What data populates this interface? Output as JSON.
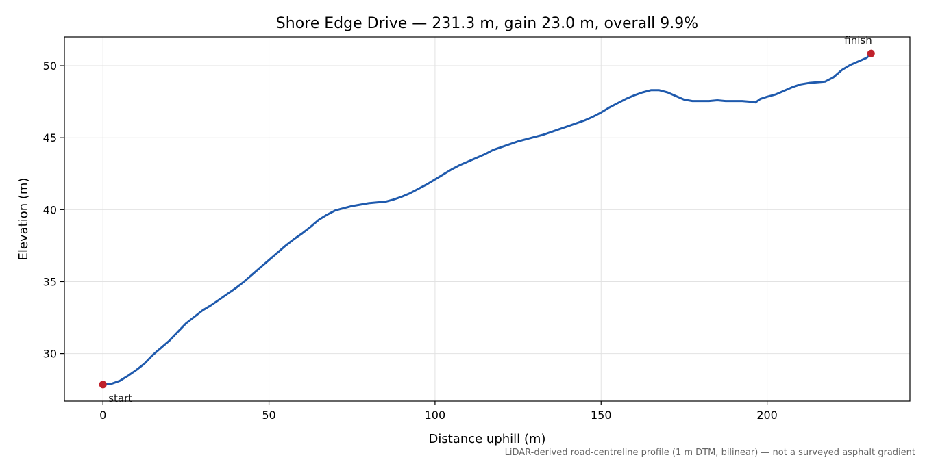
{
  "chart_data": {
    "type": "line",
    "title": "Shore Edge Drive — 231.3 m, gain 23.0 m, overall 9.9%",
    "xlabel": "Distance uphill (m)",
    "ylabel": "Elevation (m)",
    "xlim": [
      -11.6,
      243.0
    ],
    "ylim": [
      26.7,
      52.0
    ],
    "xticks": [
      0,
      50,
      100,
      150,
      200
    ],
    "yticks": [
      30,
      35,
      40,
      45,
      50
    ],
    "grid": true,
    "line_color": "#1f5aad",
    "marker_color": "#c0212b",
    "series": [
      {
        "x": [
          0,
          2.5,
          5,
          7.5,
          10,
          12.5,
          15,
          17.5,
          20,
          22.5,
          25,
          27.5,
          30,
          32.5,
          35,
          37.5,
          40,
          42.5,
          45,
          47.5,
          50,
          52.5,
          55,
          57.5,
          60,
          62.5,
          65,
          67.5,
          70,
          72.5,
          75,
          77.5,
          80,
          82.5,
          85,
          87.5,
          90,
          92.5,
          95,
          97.5,
          100,
          102.5,
          105,
          107.5,
          110,
          112.5,
          115,
          117.5,
          120,
          122.5,
          125,
          127.5,
          130,
          132.5,
          135,
          137.5,
          140,
          142.5,
          145,
          147.5,
          150,
          152.5,
          155,
          157.5,
          160,
          162.5,
          165,
          167.5,
          170,
          172.5,
          175,
          177.5,
          180,
          182.5,
          185,
          187.5,
          190,
          192.5,
          195,
          196.5,
          198,
          200,
          202.5,
          205,
          207.5,
          210,
          212.5,
          215,
          217.5,
          220,
          222.5,
          225,
          227.5,
          230,
          231.3
        ],
        "y": [
          27.85,
          27.9,
          28.1,
          28.45,
          28.85,
          29.3,
          29.9,
          30.4,
          30.9,
          31.5,
          32.1,
          32.55,
          33.0,
          33.35,
          33.75,
          34.15,
          34.55,
          35.0,
          35.5,
          36.0,
          36.5,
          37.0,
          37.5,
          37.95,
          38.35,
          38.8,
          39.3,
          39.65,
          39.95,
          40.1,
          40.25,
          40.35,
          40.45,
          40.5,
          40.55,
          40.7,
          40.9,
          41.15,
          41.45,
          41.75,
          42.1,
          42.45,
          42.8,
          43.1,
          43.35,
          43.6,
          43.85,
          44.15,
          44.35,
          44.55,
          44.75,
          44.9,
          45.05,
          45.2,
          45.4,
          45.6,
          45.8,
          46.0,
          46.2,
          46.45,
          46.75,
          47.1,
          47.4,
          47.7,
          47.95,
          48.15,
          48.3,
          48.3,
          48.15,
          47.9,
          47.65,
          47.55,
          47.55,
          47.55,
          47.6,
          47.55,
          47.55,
          47.55,
          47.5,
          47.45,
          47.7,
          47.85,
          48.0,
          48.25,
          48.5,
          48.7,
          48.8,
          48.85,
          48.9,
          49.2,
          49.7,
          50.05,
          50.3,
          50.55,
          50.85
        ],
        "color": "#1f5aad"
      }
    ],
    "annotations": [
      {
        "label": "start",
        "x": 0,
        "y": 27.85
      },
      {
        "label": "finish",
        "x": 231.3,
        "y": 50.85
      }
    ],
    "footnote": "LiDAR-derived road-centreline profile (1 m DTM, bilinear) — not a surveyed asphalt gradient"
  }
}
